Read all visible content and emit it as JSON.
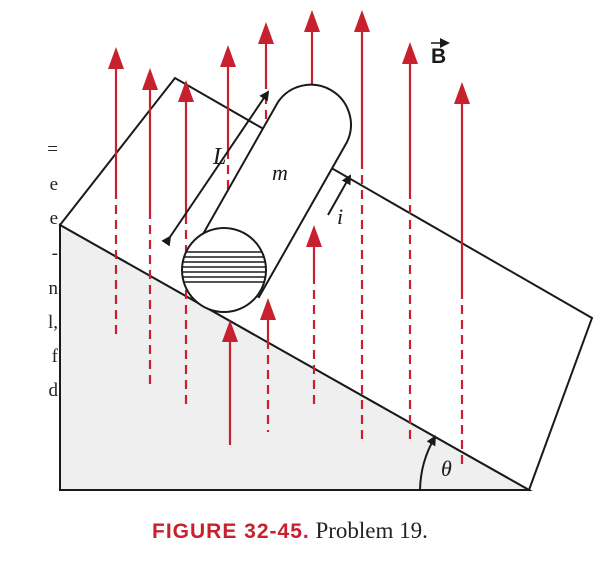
{
  "figure": {
    "label": "FIGURE 32-45.",
    "reference": "Problem 19.",
    "symbols": {
      "field": "B",
      "mass": "m",
      "length": "L",
      "current": "i",
      "angle": "θ"
    }
  },
  "left_edge_text": [
    "=",
    "e",
    "e",
    "-",
    "n",
    "l,",
    "f",
    "d"
  ],
  "colors": {
    "field_arrow": "#c8202e",
    "outline": "#1a1a1a",
    "ramp_face": "#efefef",
    "caption_label": "#c8202e"
  }
}
